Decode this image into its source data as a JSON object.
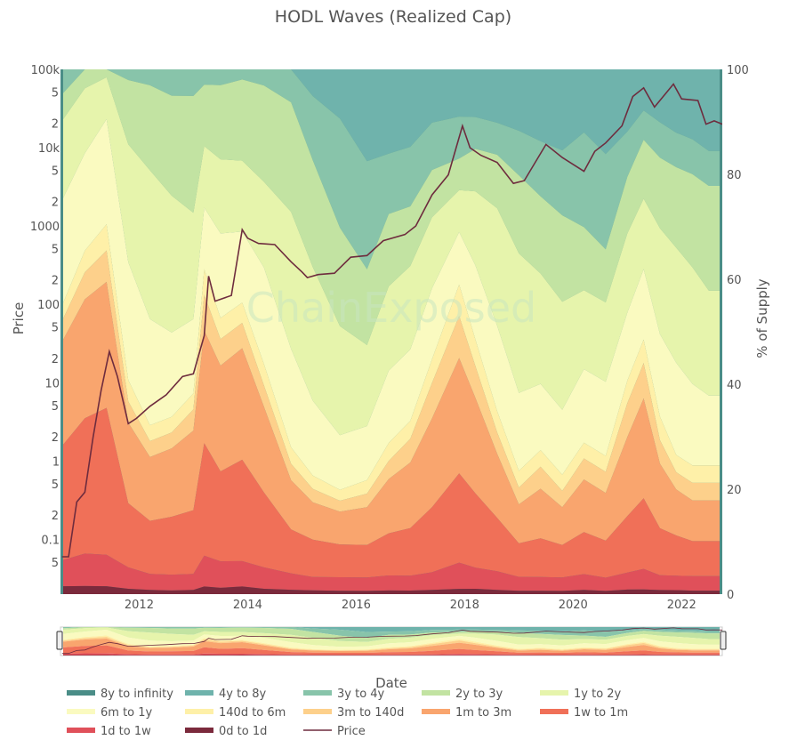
{
  "chart_data": {
    "type": "area",
    "title": "HODL Waves (Realized Cap)",
    "watermark": "ChainExposed",
    "xlabel": "Date",
    "ylabel_left": "Price",
    "ylabel_right": "% of Supply",
    "x_range": [
      2010.55,
      2022.75
    ],
    "x_ticks": [
      2012,
      2014,
      2016,
      2018,
      2020,
      2022
    ],
    "x_tick_labels": [
      "2012",
      "2014",
      "2016",
      "2018",
      "2020",
      "2022"
    ],
    "y_right_range": [
      0,
      100
    ],
    "y_right_ticks": [
      "0",
      "20",
      "40",
      "60",
      "80",
      "100"
    ],
    "y_left_scale": "log",
    "y_left_range": [
      0.02,
      100000
    ],
    "y_left_major_ticks": [
      {
        "value": 0.1,
        "label": "0.1"
      },
      {
        "value": 1,
        "label": "1"
      },
      {
        "value": 10,
        "label": "10"
      },
      {
        "value": 100,
        "label": "100"
      },
      {
        "value": 1000,
        "label": "1000"
      },
      {
        "value": 10000,
        "label": "10k"
      },
      {
        "value": 100000,
        "label": "100k"
      }
    ],
    "y_left_minor_ticks": [
      {
        "value": 0.05,
        "label": "5"
      },
      {
        "value": 0.2,
        "label": "2"
      },
      {
        "value": 0.5,
        "label": "5"
      },
      {
        "value": 2,
        "label": "2"
      },
      {
        "value": 5,
        "label": "5"
      },
      {
        "value": 20,
        "label": "2"
      },
      {
        "value": 50,
        "label": "5"
      },
      {
        "value": 200,
        "label": "2"
      },
      {
        "value": 500,
        "label": "5"
      },
      {
        "value": 2000,
        "label": "2"
      },
      {
        "value": 5000,
        "label": "5"
      },
      {
        "value": 20000,
        "label": "2"
      },
      {
        "value": 50000,
        "label": "5"
      }
    ],
    "x": [
      2010.6,
      2011.0,
      2011.4,
      2011.8,
      2012.2,
      2012.6,
      2013.0,
      2013.2,
      2013.5,
      2013.9,
      2014.3,
      2014.8,
      2015.2,
      2015.7,
      2016.2,
      2016.6,
      2017.0,
      2017.4,
      2017.9,
      2018.2,
      2018.6,
      2019.0,
      2019.4,
      2019.8,
      2020.2,
      2020.6,
      2021.0,
      2021.3,
      2021.6,
      2021.9,
      2022.2,
      2022.5,
      2022.7
    ],
    "series": [
      {
        "name": "0d to 1d",
        "color": "#7b2a3c",
        "values": [
          1.5,
          1.5,
          1.5,
          1.0,
          0.8,
          0.7,
          0.8,
          1.5,
          1.2,
          1.5,
          1.0,
          0.8,
          0.7,
          0.6,
          0.6,
          0.6,
          0.6,
          0.7,
          1.0,
          1.0,
          0.8,
          0.6,
          0.6,
          0.6,
          0.8,
          0.6,
          0.8,
          0.8,
          0.7,
          0.7,
          0.6,
          0.6,
          0.6
        ]
      },
      {
        "name": "1d to 1w",
        "color": "#e0505a",
        "values": [
          5,
          6,
          6,
          4,
          3,
          3,
          3,
          6,
          5,
          5,
          4,
          3,
          2.5,
          2.5,
          2.5,
          2.5,
          2.5,
          3,
          5,
          4,
          3.5,
          2.5,
          2.5,
          2.5,
          3,
          2.5,
          3,
          3.5,
          2.5,
          2.5,
          2.5,
          2.5,
          2.5
        ]
      },
      {
        "name": "1w to 1m",
        "color": "#f07058",
        "values": [
          22,
          25,
          28,
          12,
          10,
          11,
          12,
          22,
          17,
          20,
          14,
          8,
          7,
          6,
          6,
          7,
          8,
          11,
          17,
          14,
          10,
          6,
          7,
          6,
          8,
          7,
          10,
          12,
          8,
          7,
          6,
          6,
          6
        ]
      },
      {
        "name": "1m to 3m",
        "color": "#f9a56e",
        "values": [
          20,
          22,
          24,
          15,
          12,
          13,
          15,
          22,
          20,
          22,
          16,
          9,
          7,
          6,
          7,
          9,
          11,
          15,
          22,
          18,
          12,
          7,
          9,
          7,
          10,
          9,
          14,
          17,
          11,
          8,
          7,
          7,
          7
        ]
      },
      {
        "name": "3m to 140d",
        "color": "#fdd08b",
        "values": [
          4,
          5,
          6,
          4,
          3,
          3,
          4,
          7,
          5,
          5,
          4,
          3,
          2.5,
          2,
          2.5,
          3,
          4,
          6,
          8,
          6,
          4,
          3,
          4,
          3,
          4,
          4,
          6,
          6,
          4,
          3,
          3,
          3,
          3
        ]
      },
      {
        "name": "140d to 6m",
        "color": "#fef0a8",
        "values": [
          3,
          4,
          5,
          4,
          3,
          3,
          3,
          5,
          4,
          4,
          4,
          3,
          2.5,
          2,
          2.5,
          3,
          3,
          4,
          6,
          5,
          4,
          3,
          3,
          3,
          3,
          3,
          4,
          4,
          4,
          3,
          3,
          3,
          3
        ]
      },
      {
        "name": "6m to 1y",
        "color": "#fafac0",
        "values": [
          20,
          18,
          20,
          22,
          20,
          16,
          14,
          12,
          16,
          14,
          18,
          18,
          14,
          10,
          10,
          12,
          12,
          12,
          10,
          14,
          16,
          14,
          12,
          12,
          14,
          14,
          12,
          12,
          14,
          16,
          14,
          12,
          12
        ]
      },
      {
        "name": "1y to 2y",
        "color": "#e6f4ac",
        "values": [
          15,
          12,
          8,
          22,
          28,
          26,
          20,
          12,
          14,
          14,
          16,
          25,
          25,
          20,
          15,
          14,
          14,
          12,
          8,
          14,
          22,
          25,
          20,
          20,
          15,
          15,
          14,
          12,
          18,
          20,
          20,
          18,
          18
        ]
      },
      {
        "name": "2y to 3y",
        "color": "#c2e3a2",
        "values": [
          5,
          3.5,
          1.5,
          12,
          16,
          19,
          22,
          12,
          14,
          16,
          18,
          20,
          20,
          18,
          14,
          12,
          10,
          8,
          6,
          8,
          10,
          14,
          14,
          16,
          12,
          10,
          10,
          10,
          12,
          14,
          16,
          18,
          18
        ]
      },
      {
        "name": "3y to 4y",
        "color": "#88c4aa",
        "values": [
          4.5,
          0,
          0,
          2,
          3,
          5,
          5,
          3,
          3,
          2,
          3,
          6,
          12,
          20,
          20,
          10,
          10,
          8,
          8,
          6,
          6,
          8,
          10,
          12,
          18,
          18,
          8,
          5,
          6,
          6,
          6,
          6,
          6
        ]
      },
      {
        "name": "4y to 8y",
        "color": "#6fb3ac",
        "values": [
          0,
          0,
          0,
          0,
          0,
          0,
          0,
          0,
          0,
          0,
          0,
          0,
          5,
          9,
          17,
          14,
          13,
          9,
          9,
          9,
          10,
          11,
          13,
          15,
          12,
          16,
          11,
          7,
          9,
          11,
          12,
          14,
          14
        ]
      },
      {
        "name": "8y to infinity",
        "color": "#4a8d87",
        "values": [
          0,
          0,
          0,
          0,
          0,
          0,
          0,
          0,
          0,
          0,
          0,
          0,
          0,
          0,
          0,
          0,
          0,
          0,
          0,
          0,
          0,
          0,
          0,
          0,
          0,
          0,
          0,
          0,
          0,
          0,
          0,
          0,
          0
        ]
      }
    ],
    "price_series": {
      "name": "Price",
      "color": "#6e2c3e",
      "points": [
        [
          2010.58,
          0.06
        ],
        [
          2010.7,
          0.06
        ],
        [
          2010.85,
          0.3
        ],
        [
          2011.0,
          0.4
        ],
        [
          2011.15,
          2
        ],
        [
          2011.3,
          8
        ],
        [
          2011.45,
          25
        ],
        [
          2011.6,
          12
        ],
        [
          2011.8,
          3
        ],
        [
          2011.95,
          3.5
        ],
        [
          2012.2,
          5
        ],
        [
          2012.5,
          7
        ],
        [
          2012.8,
          12
        ],
        [
          2013.0,
          13
        ],
        [
          2013.2,
          40
        ],
        [
          2013.28,
          230
        ],
        [
          2013.4,
          110
        ],
        [
          2013.7,
          130
        ],
        [
          2013.9,
          900
        ],
        [
          2014.0,
          700
        ],
        [
          2014.2,
          600
        ],
        [
          2014.5,
          580
        ],
        [
          2014.8,
          350
        ],
        [
          2015.0,
          260
        ],
        [
          2015.1,
          220
        ],
        [
          2015.3,
          240
        ],
        [
          2015.6,
          250
        ],
        [
          2015.9,
          400
        ],
        [
          2016.2,
          420
        ],
        [
          2016.5,
          650
        ],
        [
          2016.9,
          780
        ],
        [
          2017.1,
          1000
        ],
        [
          2017.4,
          2500
        ],
        [
          2017.7,
          4500
        ],
        [
          2017.96,
          19000
        ],
        [
          2018.1,
          10000
        ],
        [
          2018.3,
          8000
        ],
        [
          2018.6,
          6500
        ],
        [
          2018.9,
          3500
        ],
        [
          2019.1,
          3800
        ],
        [
          2019.5,
          11000
        ],
        [
          2019.8,
          7500
        ],
        [
          2020.2,
          5000
        ],
        [
          2020.4,
          9000
        ],
        [
          2020.6,
          11500
        ],
        [
          2020.9,
          19000
        ],
        [
          2021.1,
          45000
        ],
        [
          2021.3,
          58000
        ],
        [
          2021.5,
          33000
        ],
        [
          2021.85,
          65000
        ],
        [
          2022.0,
          42000
        ],
        [
          2022.3,
          40000
        ],
        [
          2022.45,
          20000
        ],
        [
          2022.6,
          22000
        ],
        [
          2022.75,
          20000
        ]
      ]
    },
    "legend": {
      "position": "bottom",
      "items": [
        "8y to infinity",
        "4y to 8y",
        "3y to 4y",
        "2y to 3y",
        "1y to 2y",
        "6m to 1y",
        "140d to 6m",
        "3m to 140d",
        "1m to 3m",
        "1w to 1m",
        "1d to 1w",
        "0d to 1d",
        "Price"
      ]
    },
    "range_slider": true
  }
}
